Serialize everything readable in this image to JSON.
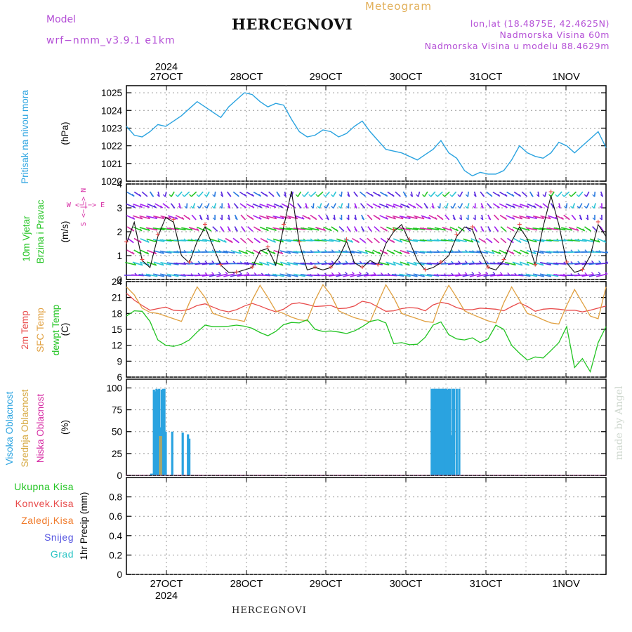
{
  "header": {
    "model_label": "Model",
    "model_name": "wrf−nmm_v3.9.1  e1km",
    "title": "HERCEGNOVI",
    "subtitle": "Meteogram",
    "lonlat": "lon,lat (18.4875E, 42.4625N)",
    "elevation": "Nadmorska Visina 60m",
    "model_elevation": "Nadmorska Visina u modelu 88.4629m",
    "footer_title": "HERCEGNOVI",
    "watermark": "made by Angel"
  },
  "colors": {
    "pressure": "#2aa3e0",
    "temp2m": "#e84a4a",
    "sfc_temp": "#e0a040",
    "dewpoint": "#22c422",
    "high_cloud": "#2aa3e0",
    "mid_cloud": "#d6a840",
    "low_cloud": "#d62aa3",
    "wind_speed": "#111111",
    "gust": "#e84a4a"
  },
  "chart_data": [
    {
      "type": "line",
      "name": "pressure",
      "ylabel": "(hPa)",
      "side_labels": [
        "Pritisak na nivou mora"
      ],
      "ylim": [
        1020,
        1025.4
      ],
      "yticks": [
        1020,
        1021,
        1022,
        1023,
        1024,
        1025
      ],
      "grid": true,
      "x_top_labels": [
        "27OCT",
        "28OCT",
        "29OCT",
        "30OCT",
        "31OCT",
        "1NOV"
      ],
      "x_top_year": "2024",
      "series": [
        {
          "values": [
            1023.1,
            1022.6,
            1022.5,
            1022.8,
            1023.2,
            1023.1,
            1023.4,
            1023.7,
            1024.1,
            1024.5,
            1024.2,
            1023.9,
            1023.6,
            1024.2,
            1024.6,
            1025.0,
            1024.9,
            1024.5,
            1024.2,
            1024.4,
            1024.3,
            1023.5,
            1022.8,
            1022.5,
            1022.6,
            1022.9,
            1022.8,
            1022.5,
            1022.7,
            1023.1,
            1023.4,
            1022.8,
            1022.3,
            1021.8,
            1021.7,
            1021.6,
            1021.4,
            1021.2,
            1021.5,
            1021.8,
            1022.3,
            1021.6,
            1021.3,
            1020.6,
            1020.3,
            1020.5,
            1020.4,
            1020.4,
            1020.6,
            1021.2,
            1022.0,
            1021.6,
            1021.4,
            1021.3,
            1021.6,
            1022.2,
            1022.0,
            1021.6,
            1022.0,
            1022.4,
            1022.8,
            1021.9
          ]
        }
      ]
    },
    {
      "type": "line",
      "name": "wind",
      "ylabel": "(m/s)",
      "side_labels": [
        "10m Vjetar",
        "Brzina i Pravac"
      ],
      "compass": "W <−|−> E",
      "compass_vertical": "S <−|−> N",
      "ylim": [
        0,
        4
      ],
      "yticks": [
        0,
        1,
        2,
        3,
        4
      ],
      "grid": true,
      "series": [
        {
          "name": "speed",
          "values": [
            1.5,
            2.4,
            0.8,
            0.5,
            1.8,
            2.6,
            2.4,
            1.0,
            0.7,
            1.6,
            2.2,
            1.4,
            0.6,
            0.3,
            0.3,
            0.4,
            0.5,
            1.2,
            1.3,
            0.6,
            2.2,
            3.7,
            1.5,
            0.4,
            0.5,
            0.4,
            0.5,
            0.9,
            1.6,
            0.7,
            0.5,
            0.8,
            0.6,
            1.5,
            2.0,
            2.3,
            1.6,
            0.8,
            0.4,
            0.5,
            0.7,
            1.0,
            1.8,
            2.2,
            2.1,
            1.2,
            0.5,
            0.4,
            0.8,
            1.6,
            2.2,
            1.7,
            0.6,
            2.2,
            3.5,
            2.3,
            0.7,
            0.3,
            0.4,
            1.0,
            2.3,
            1.8
          ]
        }
      ]
    },
    {
      "type": "line",
      "name": "temperature",
      "ylabel": "(C)",
      "side_labels": [
        "2m Temp",
        "SFC Temp",
        "dewpt Temp"
      ],
      "ylim": [
        6,
        24
      ],
      "yticks": [
        6,
        9,
        12,
        15,
        18,
        21,
        24
      ],
      "grid": true,
      "series": [
        {
          "name": "2m Temp",
          "values": [
            21.8,
            20.5,
            19.5,
            18.6,
            18.9,
            19.2,
            18.6,
            18.5,
            18.8,
            19.5,
            19.8,
            19.2,
            18.6,
            18.3,
            18.7,
            19.4,
            19.9,
            19.4,
            18.8,
            18.3,
            18.8,
            19.8,
            20.0,
            19.7,
            19.3,
            19.4,
            19.5,
            18.9,
            19.0,
            19.4,
            20.3,
            20.0,
            19.2,
            18.4,
            18.5,
            18.9,
            19.1,
            19.0,
            18.5,
            19.6,
            20.1,
            19.8,
            19.1,
            18.7,
            18.7,
            19.0,
            18.9,
            18.8,
            18.5,
            19.3,
            20.0,
            19.3,
            18.4,
            18.8,
            18.9,
            18.8,
            18.6,
            18.6,
            18.3,
            18.6,
            19.0,
            19.4
          ]
        },
        {
          "name": "SFC Temp",
          "values": [
            23.0,
            21.5,
            19.0,
            18.2,
            18.0,
            17.5,
            17.0,
            16.5,
            20.0,
            23.0,
            21.0,
            18.0,
            17.5,
            17.0,
            16.8,
            16.5,
            20.5,
            23.3,
            21.0,
            18.5,
            18.0,
            17.3,
            16.8,
            16.6,
            20.5,
            23.4,
            21.5,
            18.5,
            17.8,
            17.2,
            16.8,
            16.4,
            20.0,
            23.4,
            21.0,
            18.0,
            17.5,
            17.0,
            16.5,
            16.3,
            20.5,
            23.3,
            21.0,
            18.5,
            17.8,
            17.2,
            16.6,
            16.2,
            20.0,
            23.0,
            20.5,
            18.0,
            17.5,
            16.8,
            16.2,
            16.0,
            19.5,
            22.5,
            20.0,
            17.5,
            17.0,
            23.0
          ]
        },
        {
          "name": "dewpt Temp",
          "values": [
            17.5,
            18.5,
            18.4,
            16.5,
            13.0,
            12.0,
            11.8,
            12.2,
            13.0,
            14.5,
            15.8,
            15.5,
            15.5,
            15.6,
            15.8,
            15.6,
            15.2,
            14.4,
            13.8,
            14.6,
            15.9,
            16.3,
            16.2,
            16.8,
            15.0,
            14.6,
            14.7,
            14.5,
            14.2,
            14.7,
            15.5,
            16.5,
            16.8,
            16.2,
            12.3,
            12.5,
            12.1,
            12.2,
            13.5,
            15.8,
            16.4,
            14.0,
            13.2,
            13.0,
            13.4,
            12.5,
            13.2,
            15.8,
            15.0,
            12.0,
            10.5,
            9.2,
            9.8,
            9.6,
            11.0,
            12.5,
            15.5,
            7.8,
            9.5,
            7.0,
            12.5,
            15.5
          ]
        }
      ]
    },
    {
      "type": "bar",
      "name": "clouds",
      "ylabel": "(%)",
      "side_labels": [
        "Visoka Oblacnost",
        "Srednja Oblacnost",
        "Niska Oblacnost"
      ],
      "ylim": [
        0,
        110
      ],
      "yticks": [
        0,
        25,
        50,
        75,
        100
      ],
      "grid": true,
      "series": [
        {
          "name": "Visoka Oblacnost",
          "hours": [
            19,
            20,
            21,
            22,
            23,
            24,
            25,
            26,
            27,
            28,
            29,
            30,
            35,
            43,
            47,
            48,
            233,
            234,
            235,
            236,
            237,
            238,
            239,
            240,
            241,
            242,
            243,
            244,
            245,
            246,
            247,
            248,
            249,
            250,
            252,
            254
          ],
          "values": [
            2,
            2,
            98,
            96,
            99,
            98,
            99,
            55,
            98,
            99,
            99,
            50,
            50,
            49,
            47,
            42,
            99,
            99,
            99,
            99,
            99,
            99,
            99,
            99,
            99,
            99,
            99,
            99,
            98,
            99,
            99,
            46,
            99,
            99,
            99,
            99
          ]
        },
        {
          "name": "Srednja Oblacnost",
          "hours": [
            26,
            27
          ],
          "values": [
            45,
            45
          ]
        }
      ]
    },
    {
      "type": "bar",
      "name": "precip",
      "ylabel": "1hr Precip (mm)",
      "side_labels": [
        "Ukupna Kisa",
        "Konvek.Kisa",
        "Zaledj.Kisa",
        "Snijeg",
        "Grad"
      ],
      "ylim": [
        0,
        1.0
      ],
      "yticks": [
        0,
        0.2,
        0.4,
        0.6,
        0.8
      ],
      "ytick_labels": [
        "0",
        "0.2",
        "0.4",
        "0.6",
        "0.8"
      ],
      "grid": true,
      "x_bottom_labels": [
        "27OCT",
        "28OCT",
        "29OCT",
        "30OCT",
        "31OCT",
        "1NOV"
      ],
      "x_bottom_year": "2024",
      "series": [
        {
          "name": "Ukupna Kisa",
          "values": []
        }
      ]
    }
  ]
}
